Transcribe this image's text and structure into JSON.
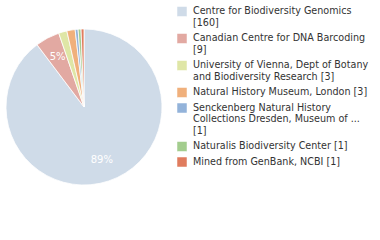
{
  "chart_data": {
    "type": "pie",
    "categories": [
      "Centre for Biodiversity Genomics [160]",
      "Canadian Centre for DNA Barcoding [9]",
      "University of Vienna, Dept of Botany and Biodiversity Research [3]",
      "Natural History Museum, London [3]",
      "Senckenberg Natural History Collections Dresden, Museum of ... [1]",
      "Naturalis Biodiversity Center [1]",
      "Mined from GenBank, NCBI [1]"
    ],
    "values": [
      89,
      5,
      1.7,
      1.7,
      0.6,
      0.6,
      0.6
    ],
    "value_labels": [
      "89%",
      "5%",
      null,
      null,
      null,
      null,
      null
    ],
    "data_labels": true,
    "legend": "right",
    "colors": [
      "#cfdbe8",
      "#e2a9a2",
      "#dfe6a6",
      "#f0b07c",
      "#93b3da",
      "#a3cd8e",
      "#e07c5e"
    ]
  }
}
